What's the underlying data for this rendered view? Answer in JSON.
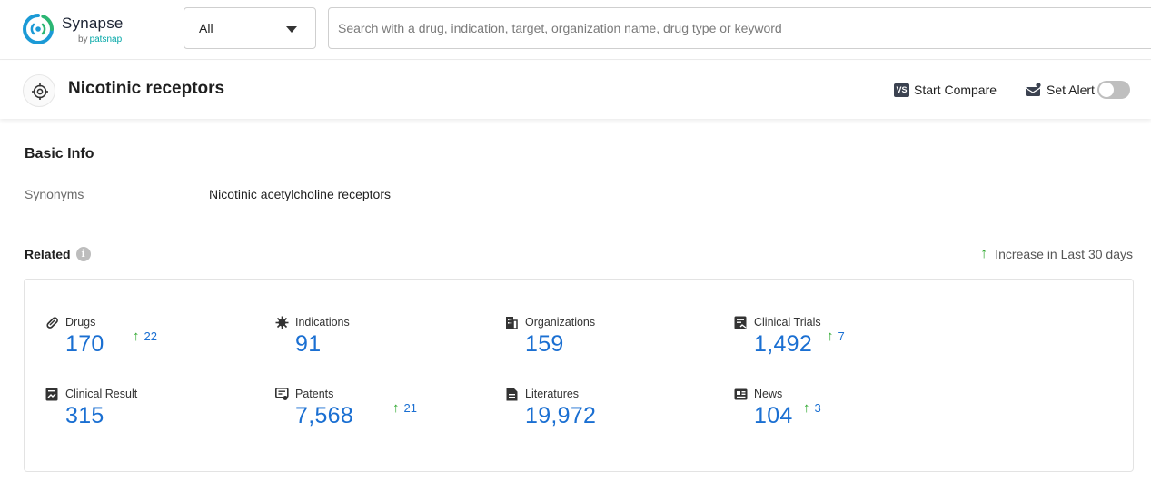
{
  "header": {
    "brand_name": "Synapse",
    "brand_sub_by": "by",
    "brand_sub_name": "patsnap",
    "search_scope": "All",
    "search_placeholder": "Search with a drug, indication, target, organization name, drug type or keyword"
  },
  "titlebar": {
    "title": "Nicotinic receptors",
    "compare_icon_text": "VS",
    "compare_label": "Start Compare",
    "alert_label": "Set Alert",
    "alert_enabled": false
  },
  "basic_info": {
    "heading": "Basic Info",
    "synonyms_label": "Synonyms",
    "synonyms_value": "Nicotinic acetylcholine receptors"
  },
  "related": {
    "heading": "Related",
    "info_icon_text": "i",
    "increase_note": "Increase in Last 30 days",
    "stats": [
      {
        "label": "Drugs",
        "value": "170",
        "increase": "22",
        "icon": "pill-icon"
      },
      {
        "label": "Indications",
        "value": "91",
        "increase": "",
        "icon": "virus-icon"
      },
      {
        "label": "Organizations",
        "value": "159",
        "increase": "",
        "icon": "building-icon"
      },
      {
        "label": "Clinical Trials",
        "value": "1,492",
        "increase": "7",
        "icon": "clipboard-icon"
      },
      {
        "label": "Clinical Result",
        "value": "315",
        "increase": "",
        "icon": "chart-doc-icon"
      },
      {
        "label": "Patents",
        "value": "7,568",
        "increase": "21",
        "icon": "patent-icon"
      },
      {
        "label": "Literatures",
        "value": "19,972",
        "increase": "",
        "icon": "document-icon"
      },
      {
        "label": "News",
        "value": "104",
        "increase": "3",
        "icon": "newspaper-icon"
      }
    ]
  },
  "colors": {
    "accent_blue": "#1a6fd2",
    "increase_green": "#2fa82f",
    "brand_teal": "#00a6a6",
    "brand_green": "#2bb673"
  }
}
